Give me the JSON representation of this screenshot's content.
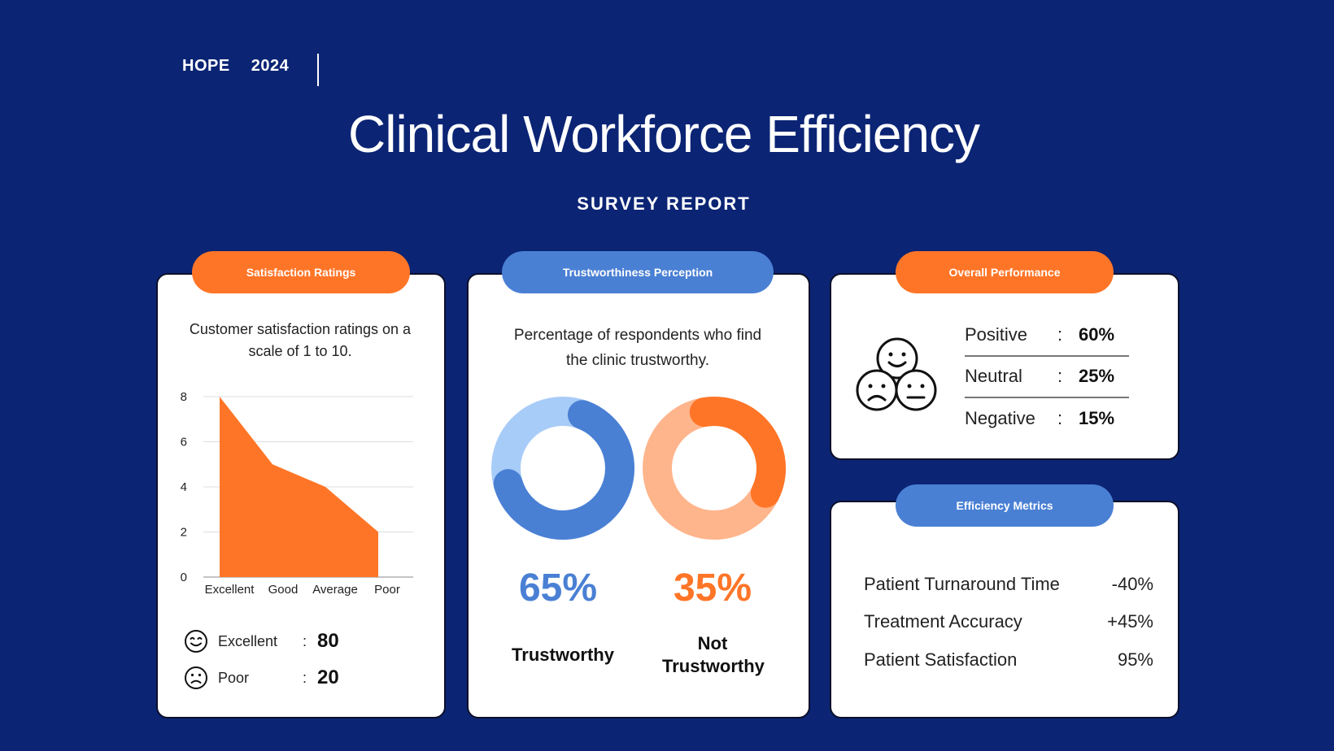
{
  "header": {
    "brand": "HOPE",
    "year": "2024",
    "title": "Clinical Workforce Efficiency",
    "subtitle": "SURVEY REPORT"
  },
  "satisfaction": {
    "tab": "Satisfaction Ratings",
    "description": "Customer satisfaction ratings on a scale of 1 to 10.",
    "rows": [
      {
        "icon": "smile-icon",
        "label": "Excellent",
        "colon": ":",
        "value": "80"
      },
      {
        "icon": "frown-icon",
        "label": "Poor",
        "colon": ":",
        "value": "20"
      }
    ]
  },
  "trust": {
    "tab": "Trustworthiness Perception",
    "description": "Percentage of respondents who find the clinic trustworthy.",
    "items": [
      {
        "pct": "65%",
        "label": "Trustworthy",
        "value": 65,
        "color": "#4a80d4",
        "track": "#a8ccf8"
      },
      {
        "pct": "35%",
        "label": "Not Trustworthy",
        "value": 35,
        "color": "#ff7527",
        "track": "#ffb58c"
      }
    ]
  },
  "performance": {
    "tab": "Overall Performance",
    "icon": "faces-icon",
    "rows": [
      {
        "label": "Positive",
        "colon": ":",
        "value": "60%"
      },
      {
        "label": "Neutral",
        "colon": ":",
        "value": "25%"
      },
      {
        "label": "Negative",
        "colon": ":",
        "value": "15%"
      }
    ]
  },
  "efficiency": {
    "tab": "Efficiency Metrics",
    "rows": [
      {
        "label": "Patient Turnaround Time",
        "value": "-40%"
      },
      {
        "label": "Treatment Accuracy",
        "value": "+45%"
      },
      {
        "label": "Patient Satisfaction",
        "value": "95%"
      }
    ]
  },
  "colors": {
    "background": "#0b2474",
    "orange": "#ff7527",
    "blue": "#4a80d4"
  },
  "chart_data": {
    "type": "area",
    "categories": [
      "Excellent",
      "Good",
      "Average",
      "Poor"
    ],
    "values": [
      8,
      5,
      4,
      2
    ],
    "ylim": [
      0,
      8
    ],
    "yticks": [
      "0",
      "2",
      "4",
      "6",
      "8"
    ],
    "grid": true,
    "color": "#ff7527"
  }
}
